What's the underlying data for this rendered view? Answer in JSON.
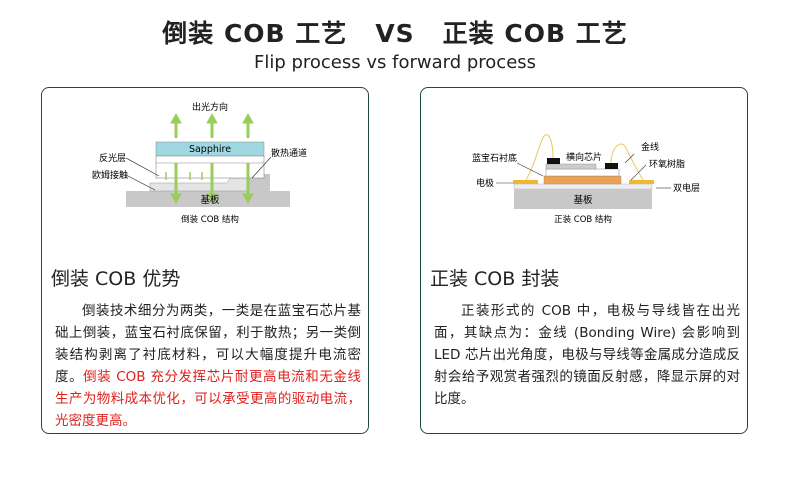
{
  "header": {
    "left": "倒装 COB 工艺",
    "vs": "VS",
    "right": "正装 COB 工艺",
    "subtitle": "Flip process vs forward process"
  },
  "flip": {
    "diagram": {
      "light_dir": "出光方向",
      "sapphire": "Sapphire",
      "reflect": "反光层",
      "ohmic": "欧姆接触",
      "heat": "散热通道",
      "substrate": "基板",
      "caption": "倒装 COB 结构"
    },
    "heading": "倒装 COB 优势",
    "text": "倒装技术细分为两类，一类是在蓝宝石芯片基础上倒装，蓝宝石衬底保留，利于散热；另一类倒装结构剥离了衬底材料，可以大幅度提升电流密度。",
    "highlight": "倒装 COB 充分发挥芯片耐更高电流和无金线生产为物料成本优化，可以承受更高的驱动电流，光密度更高。",
    "highlight_color": "#e0201b"
  },
  "forward": {
    "diagram": {
      "sapphire_sub": "蓝宝石衬底",
      "chip": "横向芯片",
      "gold": "金线",
      "epoxy": "环氧树脂",
      "electrode": "电极",
      "double": "双电层",
      "substrate": "基板",
      "caption": "正装 COB 结构"
    },
    "heading": "正装 COB 封装",
    "text": "正装形式的 COB 中，电极与导线皆在出光面，其缺点为：金线 (Bonding Wire) 会影响到 LED 芯片出光角度，电极与导线等金属成分造成反射会给予观赏者强烈的镜面反射感，降显示屏的对比度。"
  },
  "colors": {
    "border": "#1f4a40",
    "arrow": "#9acd5a",
    "sapphire": "#9fd8e2",
    "gold": "#f2b632"
  }
}
